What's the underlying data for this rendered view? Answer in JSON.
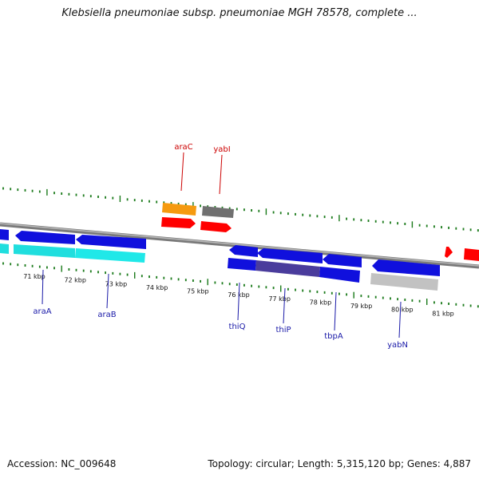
{
  "header": {
    "title": "Klebsiella pneumoniae subsp. pneumoniae MGH 78578, complete ..."
  },
  "footer": {
    "accession": "Accession: NC_009648",
    "topology": "Topology: circular; Length: 5,315,120 bp; Genes: 4,887"
  },
  "colors": {
    "backbone": "#7a7a7a",
    "ticks": "#1a7a1a",
    "forward_gene": "#ff0000",
    "reverse_gene": "#1010dd",
    "cds_cyan": "#20dede",
    "cds_orange": "#f59a10",
    "cds_gray": "#707070",
    "label_red": "#cc0000",
    "label_blue": "#1a1aa8"
  },
  "map": {
    "scale": [
      "71 kbp",
      "72 kbp",
      "73 kbp",
      "74 kbp",
      "75 kbp",
      "76 kbp",
      "77 kbp",
      "78 kbp",
      "79 kbp",
      "80 kbp",
      "81 kbp"
    ],
    "labels_above": [
      "araC",
      "yabI"
    ],
    "labels_below": [
      "araA",
      "araB",
      "thiQ",
      "thiP",
      "tbpA",
      "yabN"
    ]
  }
}
